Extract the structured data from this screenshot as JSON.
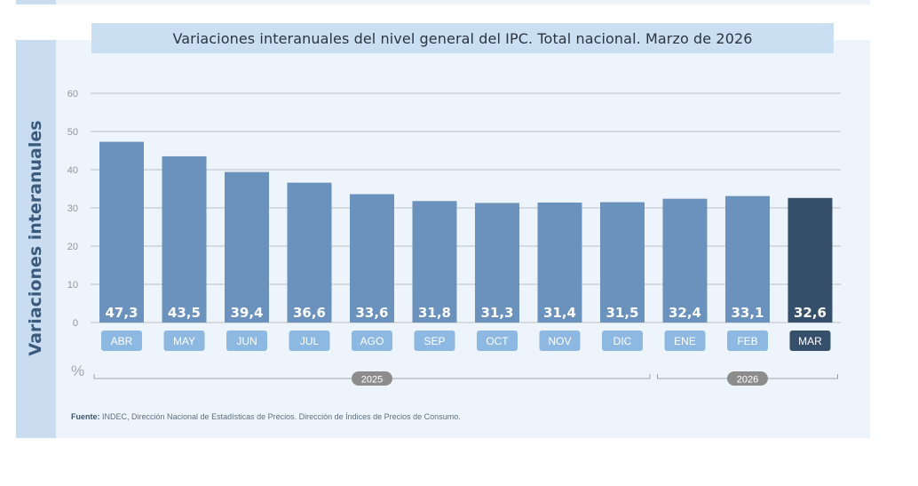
{
  "chart_data": {
    "type": "bar",
    "title": "Variaciones interanuales del nivel general del IPC. Total nacional. Marzo de 2026",
    "ylabel": "Variaciones interanuales",
    "unit_label": "%",
    "ylim": [
      0,
      60
    ],
    "yticks": [
      "0",
      "10",
      "20",
      "30",
      "40",
      "50",
      "60"
    ],
    "grid": true,
    "categories": [
      "ABR",
      "MAY",
      "JUN",
      "JUL",
      "AGO",
      "SEP",
      "OCT",
      "NOV",
      "DIC",
      "ENE",
      "FEB",
      "MAR"
    ],
    "values": [
      47.3,
      43.5,
      39.4,
      36.6,
      33.6,
      31.8,
      31.3,
      31.4,
      31.5,
      32.4,
      33.1,
      32.6
    ],
    "value_labels": [
      "47,3",
      "43,5",
      "39,4",
      "36,6",
      "33,6",
      "31,8",
      "31,3",
      "31,4",
      "31,5",
      "32,4",
      "33,1",
      "32,6"
    ],
    "highlight_index": 11,
    "year_groups": [
      {
        "label": "2025",
        "from": 0,
        "to": 8
      },
      {
        "label": "2026",
        "from": 9,
        "to": 11
      }
    ],
    "colors": {
      "bar": "#6a92bd",
      "bar_highlight": "#36506c",
      "month_pill": "#8db8e2",
      "month_pill_highlight": "#36506c",
      "year_pill": "#8c8c8c",
      "grid": "#b9bfc6"
    }
  },
  "footer": {
    "source_label": "Fuente:",
    "source_text": "INDEC, Dirección Nacional de Estadísticas de Precios. Dirección de Índices de Precios de Consumo."
  }
}
